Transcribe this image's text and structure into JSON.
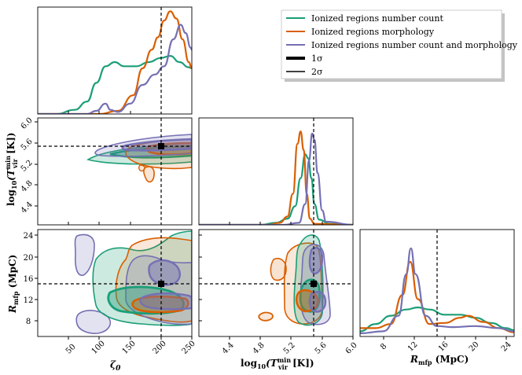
{
  "chart_data": {
    "type": "corner",
    "params": [
      {
        "id": "zeta",
        "label": "ζ₀",
        "range": [
          0,
          250
        ],
        "ticks": [
          50,
          100,
          150,
          200,
          250
        ],
        "truth": 200
      },
      {
        "id": "tvir",
        "label": "log₁₀(T_vir^min [K])",
        "range": [
          4.0,
          6.0
        ],
        "ticks": [
          4.4,
          4.8,
          5.2,
          5.6,
          6.0
        ],
        "truth": 5.48
      },
      {
        "id": "rmfp",
        "label": "R_mfp (MpC)",
        "range": [
          5,
          25
        ],
        "ticks": [
          8,
          12,
          16,
          20,
          24
        ],
        "truth": 15
      }
    ],
    "tick_labels": {
      "zeta_x": [
        "50",
        "100",
        "150",
        "200",
        "250"
      ],
      "tvir_y": [
        "6.0",
        "5.6",
        "5.2",
        "4.8",
        "4.4"
      ],
      "tvir_x": [
        "4.4",
        "4.8",
        "5.2",
        "5.6",
        "6.0"
      ],
      "rmfp_y": [
        "24",
        "20",
        "16",
        "12",
        "8"
      ],
      "rmfp_x": [
        "8",
        "12",
        "16",
        "20",
        "24"
      ]
    },
    "axis_labels": {
      "zeta_x": "ζ",
      "zeta_sub": "0",
      "tvir_main": "log",
      "tvir_sub10": "10",
      "tvir_T": "(T",
      "tvir_sup": "min",
      "tvir_sub": "vir",
      "tvir_end": " [K])",
      "rmfp_main": "R",
      "rmfp_sub": "mfp",
      "rmfp_end": " (MpC)"
    },
    "series": [
      {
        "name": "Ionized regions number count",
        "color": "#1b9e77",
        "marg_zeta": [
          [
            0,
            0.0
          ],
          [
            30,
            0.0
          ],
          [
            60,
            0.04
          ],
          [
            80,
            0.12
          ],
          [
            95,
            0.3
          ],
          [
            110,
            0.46
          ],
          [
            125,
            0.5
          ],
          [
            140,
            0.46
          ],
          [
            160,
            0.46
          ],
          [
            180,
            0.5
          ],
          [
            200,
            0.54
          ],
          [
            215,
            0.56
          ],
          [
            230,
            0.5
          ],
          [
            245,
            0.45
          ],
          [
            250,
            0.44
          ]
        ],
        "marg_tvir": [
          [
            4.0,
            0.0
          ],
          [
            4.8,
            0.0
          ],
          [
            5.0,
            0.02
          ],
          [
            5.15,
            0.06
          ],
          [
            5.25,
            0.18
          ],
          [
            5.32,
            0.45
          ],
          [
            5.38,
            0.68
          ],
          [
            5.42,
            0.64
          ],
          [
            5.46,
            0.45
          ],
          [
            5.5,
            0.2
          ],
          [
            5.56,
            0.05
          ],
          [
            5.7,
            0.01
          ],
          [
            6.0,
            0.0
          ]
        ],
        "marg_rmfp": [
          [
            5,
            0.05
          ],
          [
            7,
            0.12
          ],
          [
            9,
            0.2
          ],
          [
            11,
            0.26
          ],
          [
            12.5,
            0.28
          ],
          [
            14,
            0.26
          ],
          [
            16,
            0.21
          ],
          [
            18,
            0.21
          ],
          [
            20,
            0.18
          ],
          [
            22,
            0.13
          ],
          [
            24,
            0.08
          ],
          [
            25,
            0.06
          ]
        ]
      },
      {
        "name": "Ionized regions morphology",
        "color": "#d95f02",
        "marg_zeta": [
          [
            0,
            0.0
          ],
          [
            100,
            0.0
          ],
          [
            130,
            0.03
          ],
          [
            155,
            0.18
          ],
          [
            170,
            0.44
          ],
          [
            185,
            0.62
          ],
          [
            195,
            0.74
          ],
          [
            205,
            0.9
          ],
          [
            215,
            0.99
          ],
          [
            225,
            0.92
          ],
          [
            235,
            0.72
          ],
          [
            245,
            0.5
          ],
          [
            250,
            0.44
          ]
        ],
        "marg_tvir": [
          [
            4.0,
            0.0
          ],
          [
            4.9,
            0.0
          ],
          [
            5.05,
            0.02
          ],
          [
            5.15,
            0.08
          ],
          [
            5.22,
            0.3
          ],
          [
            5.28,
            0.78
          ],
          [
            5.32,
            0.9
          ],
          [
            5.36,
            0.72
          ],
          [
            5.4,
            0.3
          ],
          [
            5.44,
            0.06
          ],
          [
            5.5,
            0.01
          ],
          [
            6.0,
            0.0
          ]
        ],
        "marg_rmfp": [
          [
            5,
            0.08
          ],
          [
            7,
            0.08
          ],
          [
            9,
            0.12
          ],
          [
            10.5,
            0.4
          ],
          [
            11.5,
            0.72
          ],
          [
            12.5,
            0.36
          ],
          [
            14,
            0.12
          ],
          [
            16,
            0.13
          ],
          [
            18,
            0.18
          ],
          [
            19,
            0.2
          ],
          [
            21,
            0.14
          ],
          [
            23,
            0.08
          ],
          [
            25,
            0.04
          ]
        ]
      },
      {
        "name": "Ionized regions number count and morphology",
        "color": "#7570b3",
        "marg_zeta": [
          [
            0,
            0.0
          ],
          [
            80,
            0.0
          ],
          [
            95,
            0.03
          ],
          [
            110,
            0.1
          ],
          [
            118,
            0.04
          ],
          [
            130,
            0.02
          ],
          [
            150,
            0.1
          ],
          [
            170,
            0.28
          ],
          [
            190,
            0.38
          ],
          [
            205,
            0.46
          ],
          [
            220,
            0.72
          ],
          [
            232,
            0.86
          ],
          [
            240,
            0.78
          ],
          [
            248,
            0.64
          ],
          [
            250,
            0.62
          ]
        ],
        "marg_tvir": [
          [
            4.0,
            0.0
          ],
          [
            5.1,
            0.0
          ],
          [
            5.3,
            0.02
          ],
          [
            5.38,
            0.2
          ],
          [
            5.43,
            0.62
          ],
          [
            5.47,
            0.88
          ],
          [
            5.5,
            0.82
          ],
          [
            5.54,
            0.5
          ],
          [
            5.6,
            0.14
          ],
          [
            5.65,
            0.03
          ],
          [
            6.0,
            0.0
          ]
        ],
        "marg_rmfp": [
          [
            5,
            0.03
          ],
          [
            8,
            0.05
          ],
          [
            10,
            0.2
          ],
          [
            11,
            0.6
          ],
          [
            11.6,
            0.85
          ],
          [
            12.2,
            0.6
          ],
          [
            13.5,
            0.2
          ],
          [
            15,
            0.1
          ],
          [
            17,
            0.09
          ],
          [
            20,
            0.1
          ],
          [
            23,
            0.08
          ],
          [
            25,
            0.05
          ]
        ]
      }
    ],
    "legend": {
      "position": "top-right",
      "entries": [
        "Ionized regions number count",
        "Ionized regions morphology",
        "Ionized regions number count and morphology",
        "1σ",
        "2σ"
      ]
    }
  }
}
